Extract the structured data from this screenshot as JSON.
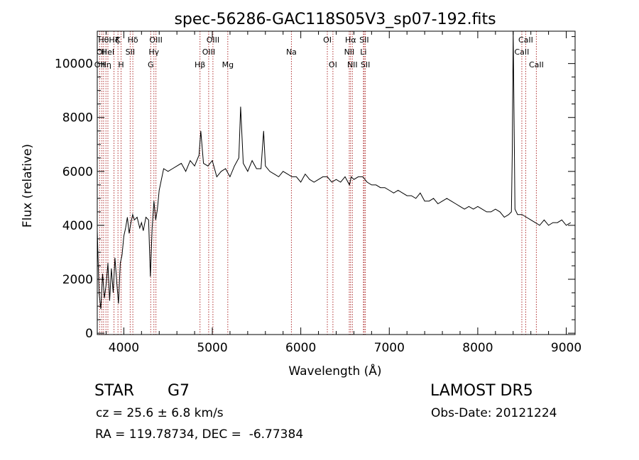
{
  "chart_data": {
    "type": "line",
    "title": "spec-56286-GAC118S05V3_sp07-192.fits",
    "xlabel": "Wavelength (Å)",
    "ylabel": "Flux (relative)",
    "xlim": [
      3700,
      9100
    ],
    "ylim": [
      -50,
      11200
    ],
    "x_ticks": [
      4000,
      5000,
      6000,
      7000,
      8000,
      9000
    ],
    "y_ticks": [
      0,
      2000,
      4000,
      6000,
      8000,
      10000
    ],
    "grid": false,
    "legend": "none",
    "line_color": "#000000",
    "marker_color": "#b03030",
    "series": [
      {
        "x": [
          3700,
          3720,
          3740,
          3760,
          3780,
          3800,
          3820,
          3840,
          3860,
          3880,
          3900,
          3920,
          3940,
          3960,
          3980,
          4000,
          4020,
          4040,
          4060,
          4080,
          4100,
          4120,
          4150,
          4180,
          4200,
          4220,
          4250,
          4280,
          4300,
          4320,
          4340,
          4360,
          4380,
          4400,
          4450,
          4500,
          4550,
          4600,
          4650,
          4700,
          4750,
          4800,
          4850,
          4870,
          4900,
          4950,
          5000,
          5050,
          5100,
          5150,
          5200,
          5250,
          5300,
          5320,
          5350,
          5400,
          5450,
          5500,
          5550,
          5580,
          5600,
          5650,
          5700,
          5750,
          5800,
          5850,
          5900,
          5950,
          6000,
          6050,
          6100,
          6150,
          6200,
          6250,
          6300,
          6350,
          6400,
          6450,
          6500,
          6550,
          6570,
          6600,
          6650,
          6700,
          6750,
          6800,
          6850,
          6900,
          6950,
          7000,
          7050,
          7100,
          7150,
          7200,
          7250,
          7300,
          7350,
          7400,
          7450,
          7500,
          7550,
          7600,
          7650,
          7700,
          7750,
          7800,
          7850,
          7900,
          7950,
          8000,
          8050,
          8100,
          8150,
          8200,
          8250,
          8300,
          8350,
          8380,
          8390,
          8400,
          8420,
          8450,
          8500,
          8550,
          8600,
          8650,
          8700,
          8750,
          8800,
          8850,
          8900,
          8950,
          9000,
          9050
        ],
        "y": [
          3800,
          1500,
          900,
          2200,
          1300,
          1800,
          2600,
          1200,
          2400,
          1500,
          2800,
          1900,
          1100,
          2600,
          2900,
          3600,
          3900,
          4300,
          3700,
          4100,
          4400,
          4200,
          4300,
          3900,
          4100,
          3800,
          4300,
          4200,
          2100,
          3900,
          4900,
          4200,
          4600,
          5300,
          6100,
          6000,
          6100,
          6200,
          6300,
          6000,
          6400,
          6200,
          6600,
          7500,
          6300,
          6200,
          6400,
          5800,
          6000,
          6100,
          5800,
          6200,
          6500,
          8400,
          6300,
          6000,
          6400,
          6100,
          6100,
          7500,
          6200,
          6000,
          5900,
          5800,
          6000,
          5900,
          5800,
          5800,
          5600,
          5900,
          5700,
          5600,
          5700,
          5800,
          5800,
          5600,
          5700,
          5600,
          5800,
          5500,
          5800,
          5700,
          5800,
          5800,
          5600,
          5500,
          5500,
          5400,
          5400,
          5300,
          5200,
          5300,
          5200,
          5100,
          5100,
          5000,
          5200,
          4900,
          4900,
          5000,
          4800,
          4900,
          5000,
          4900,
          4800,
          4700,
          4600,
          4700,
          4600,
          4700,
          4600,
          4500,
          4500,
          4600,
          4500,
          4300,
          4400,
          4500,
          6700,
          11400,
          4600,
          4400,
          4400,
          4300,
          4200,
          4100,
          4000,
          4200,
          4000,
          4100,
          4100,
          4200,
          4000,
          4100
        ]
      }
    ],
    "line_markers": [
      {
        "x": 3727,
        "label": "OII",
        "row": 2
      },
      {
        "x": 3751,
        "label": "OII",
        "row": 1
      },
      {
        "x": 3771,
        "label": "Hθ",
        "row": 0
      },
      {
        "x": 3798,
        "label": "Hη",
        "row": 2
      },
      {
        "x": 3820,
        "label": "HeI",
        "row": 1
      },
      {
        "x": 3889,
        "label": "Hζ",
        "row": 0
      },
      {
        "x": 3934,
        "label": "K",
        "row": 0
      },
      {
        "x": 3969,
        "label": "H",
        "row": 2
      },
      {
        "x": 4072,
        "label": "SII",
        "row": 1
      },
      {
        "x": 4102,
        "label": "Hδ",
        "row": 0
      },
      {
        "x": 4304,
        "label": "G",
        "row": 2
      },
      {
        "x": 4340,
        "label": "Hγ",
        "row": 1
      },
      {
        "x": 4363,
        "label": "OIII",
        "row": 0
      },
      {
        "x": 4861,
        "label": "Hβ",
        "row": 2
      },
      {
        "x": 4959,
        "label": "OIII",
        "row": 1
      },
      {
        "x": 5007,
        "label": "OIII",
        "row": 0
      },
      {
        "x": 5175,
        "label": "Mg",
        "row": 2
      },
      {
        "x": 5894,
        "label": "Na",
        "row": 1
      },
      {
        "x": 6300,
        "label": "OI",
        "row": 0
      },
      {
        "x": 6363,
        "label": "OI",
        "row": 2
      },
      {
        "x": 6548,
        "label": "NII",
        "row": 1
      },
      {
        "x": 6563,
        "label": "Hα",
        "row": 0
      },
      {
        "x": 6583,
        "label": "NII",
        "row": 2
      },
      {
        "x": 6708,
        "label": "Li",
        "row": 1
      },
      {
        "x": 6716,
        "label": "SII",
        "row": 0
      },
      {
        "x": 6730,
        "label": "SII",
        "row": 2
      },
      {
        "x": 8498,
        "label": "CaII",
        "row": 1
      },
      {
        "x": 8542,
        "label": "CaII",
        "row": 0
      },
      {
        "x": 8662,
        "label": "CaII",
        "row": 2
      }
    ]
  },
  "info": {
    "object_class": "STAR",
    "subclass": "G7",
    "survey": "LAMOST DR5",
    "cz": "cz = 25.6 ± 6.8 km/s",
    "obs_date": "Obs-Date: 20121224",
    "radec": "RA = 119.78734, DEC =  -6.77384"
  }
}
